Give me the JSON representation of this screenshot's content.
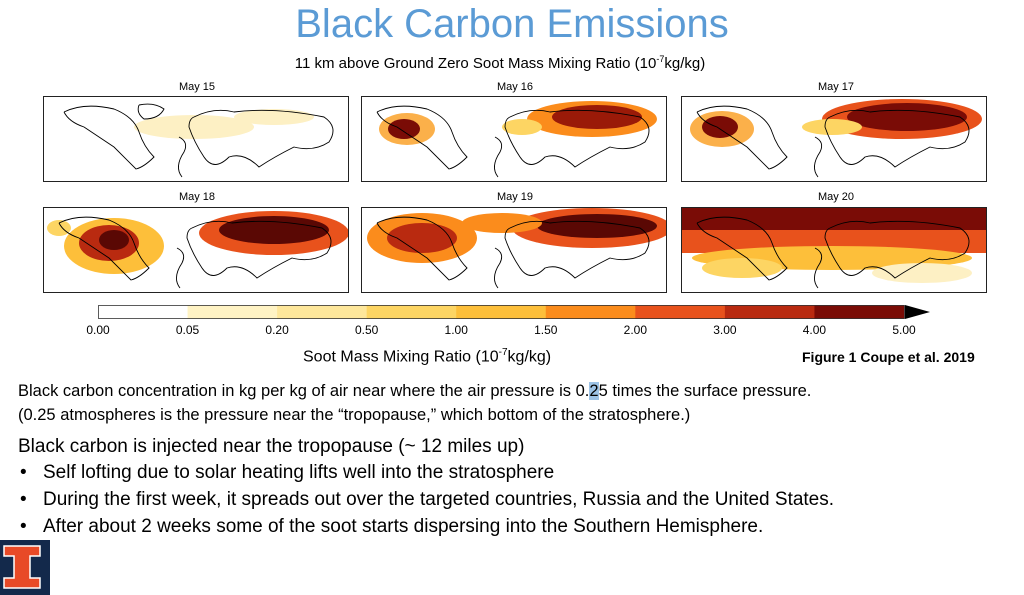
{
  "slide": {
    "title": "Black Carbon Emissions",
    "subtitle_main": "11 km above Ground Zero Soot Mass Mixing Ratio (10",
    "subtitle_exp": "-7",
    "subtitle_tail": "kg/kg)"
  },
  "panels": [
    {
      "label": "May 15"
    },
    {
      "label": "May 16"
    },
    {
      "label": "May 17"
    },
    {
      "label": "May 18"
    },
    {
      "label": "May 19"
    },
    {
      "label": "May 20"
    }
  ],
  "colorbar": {
    "ticks": [
      "0.00",
      "0.05",
      "0.20",
      "0.50",
      "1.00",
      "1.50",
      "2.00",
      "3.00",
      "4.00",
      "5.00"
    ],
    "colors": [
      "#ffffff",
      "#fff3c4",
      "#fee79b",
      "#fdd563",
      "#fdbf3a",
      "#fb8c1c",
      "#e8521c",
      "#b92a10",
      "#7a0c06"
    ],
    "title_main": "Soot Mass Mixing Ratio (10",
    "title_exp": "-7",
    "title_tail": "kg/kg)"
  },
  "figure_caption": "Figure 1 Coupe et al. 2019",
  "body": {
    "line1_a": "Black carbon concentration in kg per kg of air near where the air pressure is 0.",
    "line1_hl": "2",
    "line1_b": "5 times the surface pressure.",
    "line2": "(0.25 atmospheres is the pressure near the “tropopause,” which bottom of the stratosphere.)",
    "line3": "Black carbon is injected near the tropopause (~ 12 miles up)",
    "bullets": [
      "Self lofting due to solar heating lifts well into the stratosphere",
      "During the first week, it spreads out over the targeted countries, Russia and the United States.",
      "After about 2 weeks  some of the soot starts dispersing into the Southern Hemisphere."
    ],
    "bullet_symbol": "•"
  },
  "logo": {
    "letter": "I",
    "colors": {
      "navy": "#13294b",
      "orange": "#e84a27"
    }
  }
}
